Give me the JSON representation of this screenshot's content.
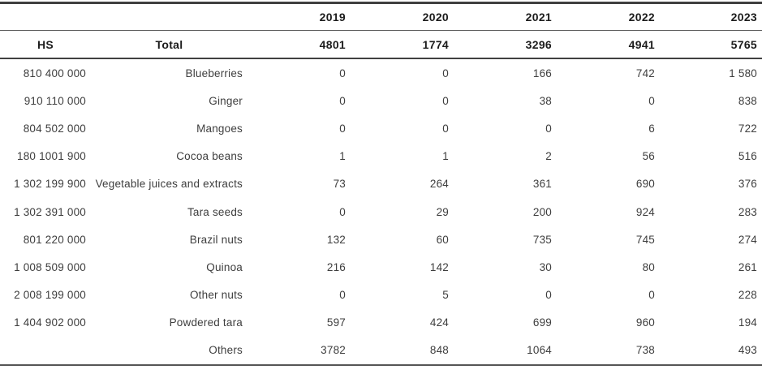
{
  "table": {
    "hs_label": "HS",
    "total_label": "Total",
    "year_headers": [
      "2019",
      "2020",
      "2021",
      "2022",
      "2023"
    ],
    "totals": [
      "4801",
      "1774",
      "3296",
      "4941",
      "5765"
    ],
    "rows": [
      {
        "hs": "810 400 000",
        "product": "Blueberries",
        "values": [
          "0",
          "0",
          "166",
          "742",
          "1 580"
        ]
      },
      {
        "hs": "910 110 000",
        "product": "Ginger",
        "values": [
          "0",
          "0",
          "38",
          "0",
          "838"
        ]
      },
      {
        "hs": "804 502 000",
        "product": "Mangoes",
        "values": [
          "0",
          "0",
          "0",
          "6",
          "722"
        ]
      },
      {
        "hs": "180 1001 900",
        "product": "Cocoa beans",
        "values": [
          "1",
          "1",
          "2",
          "56",
          "516"
        ]
      },
      {
        "hs": "1 302 199 900",
        "product": "Vegetable juices and extracts",
        "values": [
          "73",
          "264",
          "361",
          "690",
          "376"
        ]
      },
      {
        "hs": "1 302 391 000",
        "product": "Tara seeds",
        "values": [
          "0",
          "29",
          "200",
          "924",
          "283"
        ]
      },
      {
        "hs": "801 220 000",
        "product": "Brazil nuts",
        "values": [
          "132",
          "60",
          "735",
          "745",
          "274"
        ]
      },
      {
        "hs": "1 008 509 000",
        "product": "Quinoa",
        "values": [
          "216",
          "142",
          "30",
          "80",
          "261"
        ]
      },
      {
        "hs": "2 008 199 000",
        "product": "Other nuts",
        "values": [
          "0",
          "5",
          "0",
          "0",
          "228"
        ]
      },
      {
        "hs": "1 404 902 000",
        "product": "Powdered tara",
        "values": [
          "597",
          "424",
          "699",
          "960",
          "194"
        ]
      },
      {
        "hs": "",
        "product": "Others",
        "values": [
          "3782",
          "848",
          "1064",
          "738",
          "493"
        ]
      }
    ],
    "colors": {
      "background": "#ffffff",
      "header_text": "#1c1c1c",
      "body_text": "#3e3e3e",
      "rule_line": "#414141"
    }
  }
}
